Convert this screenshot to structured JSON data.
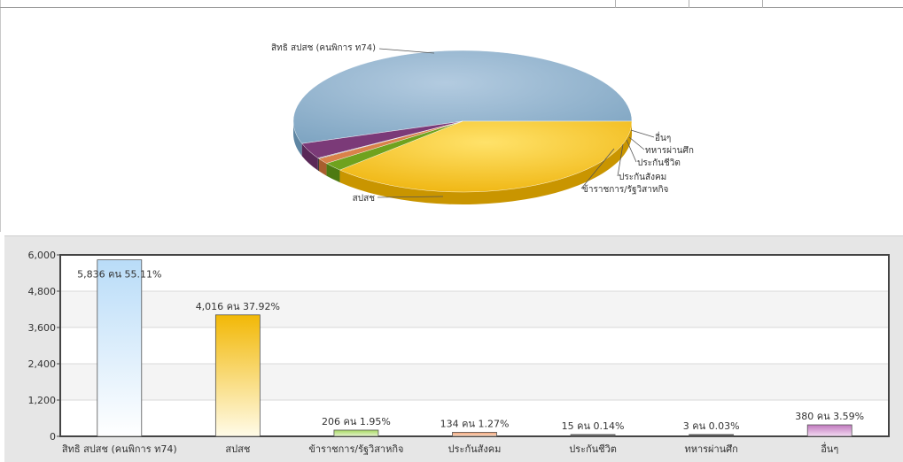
{
  "pie_chart": {
    "type": "pie",
    "labels": [
      "สิทธิ สปสช (คนพิการ ท74)",
      "สปสช",
      "ข้าราชการ/รัฐวิสาหกิจ",
      "ประกันสังคม",
      "ประกันชีวิต",
      "ทหารผ่านศึก",
      "อื่นๆ"
    ],
    "values": [
      55.11,
      37.92,
      1.95,
      1.27,
      0.14,
      0.03,
      3.59
    ],
    "colors": [
      "#8cb0cc",
      "#f3bb14",
      "#6fa21e",
      "#d9824a",
      "#3a3a3a",
      "#222222",
      "#7b3a78"
    ]
  },
  "chart_data": {
    "type": "bar",
    "categories": [
      "สิทธิ สปสช (คนพิการ ท74)",
      "สปสช",
      "ข้าราชการ/รัฐวิสาหกิจ",
      "ประกันสังคม",
      "ประกันชีวิต",
      "ทหารผ่านศึก",
      "อื่นๆ"
    ],
    "values": [
      5836,
      4016,
      206,
      134,
      15,
      3,
      380
    ],
    "data_labels": [
      "5,836 คน 55.11%",
      "4,016 คน 37.92%",
      "206 คน 1.95%",
      "134 คน 1.27%",
      "15 คน 0.14%",
      "3 คน 0.03%",
      "380 คน 3.59%"
    ],
    "yticks": [
      "0",
      "1,200",
      "2,400",
      "3,600",
      "4,800",
      "6,000"
    ],
    "ylim": [
      0,
      6000
    ],
    "grid": true,
    "colors": [
      "#bcdcf6",
      "#f5c21a",
      "#8cc63e",
      "#e8905a",
      "#4a4a4a",
      "#333333",
      "#c98ac6"
    ]
  }
}
